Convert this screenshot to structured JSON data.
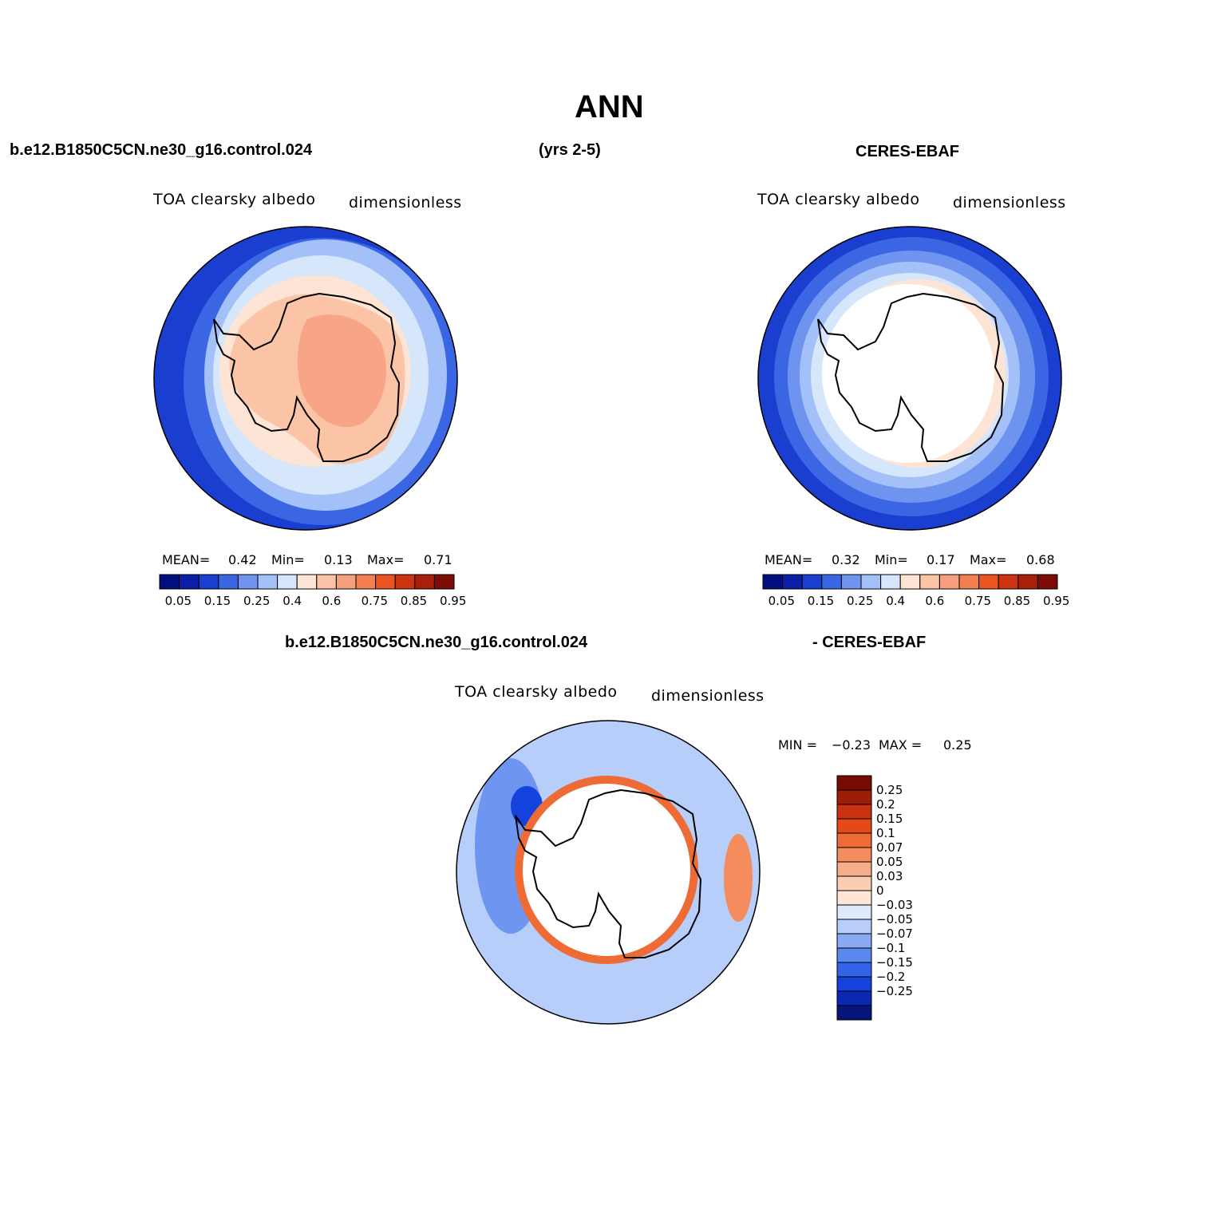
{
  "figure_title": "ANN",
  "header": {
    "case_name": "b.e12.B1850C5CN.ne30_g16.control.024",
    "years": "(yrs 2-5)",
    "obs_name": "CERES-EBAF",
    "diff_case_name": "b.e12.B1850C5CN.ne30_g16.control.024",
    "diff_obs_name": "- CERES-EBAF"
  },
  "colors": {
    "scale": [
      "#000e80",
      "#0a1ea8",
      "#1a3fd0",
      "#3a66e4",
      "#6e94f0",
      "#a3c0f8",
      "#d6e6fb",
      "#fde4d4",
      "#fbc4a6",
      "#f6a080",
      "#f27e52",
      "#ea5522",
      "#cc3310",
      "#a81f0a",
      "#7d0c06"
    ],
    "diff_scale": [
      "#05157a",
      "#0a28b0",
      "#1442dc",
      "#3363e6",
      "#5b88ee",
      "#8aaaf4",
      "#b7cefa",
      "#dfeafc",
      "#fde6d8",
      "#fbcdb3",
      "#f7ad8a",
      "#f48c5e",
      "#ee6b36",
      "#e44a18",
      "#c83210",
      "#9d1d08",
      "#780a04"
    ],
    "outline": "#000000"
  },
  "chart_data": [
    {
      "type": "heatmap",
      "name": "model",
      "title": "TOA clearsky albedo",
      "units": "dimensionless",
      "mean_label": "MEAN=",
      "mean": "0.42",
      "min_label": "Min=",
      "min": "0.13",
      "max_label": "Max=",
      "max": "0.71",
      "colorbar_levels": [
        0.05,
        0.1,
        0.15,
        0.2,
        0.25,
        0.3,
        0.4,
        0.5,
        0.6,
        0.7,
        0.75,
        0.8,
        0.85,
        0.9,
        0.95
      ],
      "colorbar_tick_labels": [
        "0.05",
        "0.15",
        "0.25",
        "0.4",
        "0.6",
        "0.75",
        "0.85",
        "0.95"
      ]
    },
    {
      "type": "heatmap",
      "name": "observations",
      "title": "TOA clearsky albedo",
      "units": "dimensionless",
      "mean_label": "MEAN=",
      "mean": "0.32",
      "min_label": "Min=",
      "min": "0.17",
      "max_label": "Max=",
      "max": "0.68",
      "colorbar_levels": [
        0.05,
        0.1,
        0.15,
        0.2,
        0.25,
        0.3,
        0.4,
        0.5,
        0.6,
        0.7,
        0.75,
        0.8,
        0.85,
        0.9,
        0.95
      ],
      "colorbar_tick_labels": [
        "0.05",
        "0.15",
        "0.25",
        "0.4",
        "0.6",
        "0.75",
        "0.85",
        "0.95"
      ]
    },
    {
      "type": "heatmap",
      "name": "difference",
      "title": "TOA clearsky albedo",
      "units": "dimensionless",
      "min_label": "MIN =",
      "min": "−0.23",
      "max_label": "MAX =",
      "max": "0.25",
      "colorbar_tick_labels": [
        "0.25",
        "0.2",
        "0.15",
        "0.1",
        "0.07",
        "0.05",
        "0.03",
        "0",
        "−0.03",
        "−0.05",
        "−0.07",
        "−0.1",
        "−0.15",
        "−0.2",
        "−0.25"
      ]
    }
  ]
}
